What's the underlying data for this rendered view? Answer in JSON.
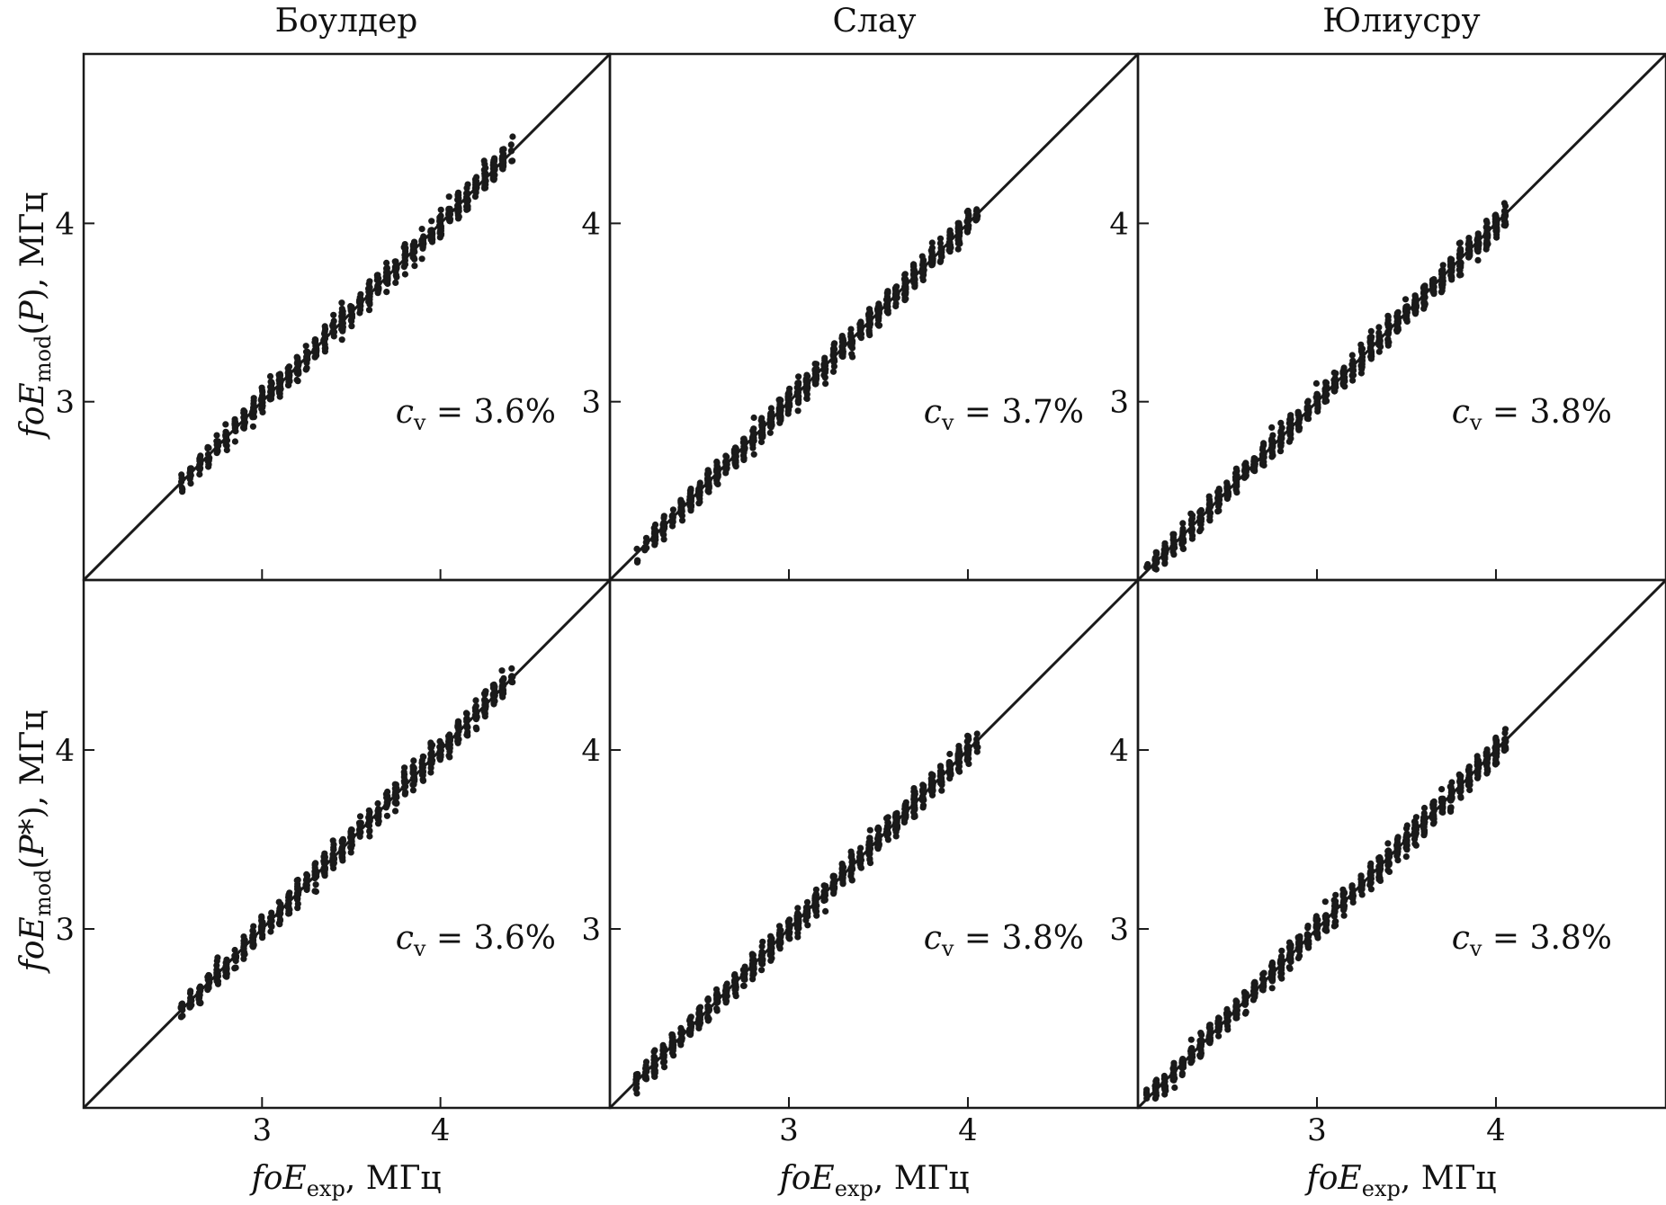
{
  "figure": {
    "columns": [
      "Боулдер",
      "Слау",
      "Юлиусру"
    ],
    "y_labels": [
      {
        "pre": "foE",
        "sub": "mod",
        "mid": "(",
        "var": "P",
        "post": "), МГц"
      },
      {
        "pre": "foE",
        "sub": "mod",
        "mid": "(",
        "var": "P*",
        "post": "), МГц"
      }
    ],
    "x_label": {
      "pre": "foE",
      "sub": "exp",
      "post": ", МГц"
    },
    "cv_prefix": "c",
    "cv_sub": "v",
    "colors": {
      "points": "#1a1a1a",
      "line": "#1a1a1a",
      "frame": "#1a1a1a"
    }
  },
  "chart_data": [
    {
      "type": "scatter",
      "column": "Боулдер",
      "row": "P",
      "cv": " = 3.6%",
      "xlim": [
        2.0,
        4.95
      ],
      "ylim": [
        2.0,
        4.95
      ],
      "xticks": [
        "3",
        "4"
      ],
      "yticks": [
        "3",
        "4"
      ],
      "reference_line": "y = x",
      "x_range": [
        2.55,
        4.4
      ],
      "points": 700
    },
    {
      "type": "scatter",
      "column": "Слау",
      "row": "P",
      "cv": " = 3.7%",
      "xlim": [
        2.0,
        4.95
      ],
      "ylim": [
        2.0,
        4.95
      ],
      "xticks": [
        "3",
        "4"
      ],
      "yticks": [
        "3",
        "4"
      ],
      "reference_line": "y = x",
      "x_range": [
        2.15,
        4.05
      ],
      "points": 900
    },
    {
      "type": "scatter",
      "column": "Юлиусру",
      "row": "P",
      "cv": " = 3.8%",
      "xlim": [
        2.0,
        4.95
      ],
      "ylim": [
        2.0,
        4.95
      ],
      "xticks": [
        "3",
        "4"
      ],
      "yticks": [
        "3",
        "4"
      ],
      "reference_line": "y = x",
      "x_range": [
        2.05,
        4.05
      ],
      "points": 850
    },
    {
      "type": "scatter",
      "column": "Боулдер",
      "row": "P*",
      "cv": " = 3.6%",
      "xlim": [
        2.0,
        4.95
      ],
      "ylim": [
        2.0,
        4.95
      ],
      "xticks": [
        "3",
        "4"
      ],
      "yticks": [
        "3",
        "4"
      ],
      "reference_line": "y = x",
      "x_range": [
        2.55,
        4.4
      ],
      "points": 700
    },
    {
      "type": "scatter",
      "column": "Слау",
      "row": "P*",
      "cv": " = 3.8%",
      "xlim": [
        2.0,
        4.95
      ],
      "ylim": [
        2.0,
        4.95
      ],
      "xticks": [
        "3",
        "4"
      ],
      "yticks": [
        "3",
        "4"
      ],
      "reference_line": "y = x",
      "x_range": [
        2.15,
        4.05
      ],
      "points": 900
    },
    {
      "type": "scatter",
      "column": "Юлиусру",
      "row": "P*",
      "cv": " = 3.8%",
      "xlim": [
        2.0,
        4.95
      ],
      "ylim": [
        2.0,
        4.95
      ],
      "xticks": [
        "3",
        "4"
      ],
      "yticks": [
        "3",
        "4"
      ],
      "reference_line": "y = x",
      "x_range": [
        2.05,
        4.05
      ],
      "points": 850
    }
  ]
}
